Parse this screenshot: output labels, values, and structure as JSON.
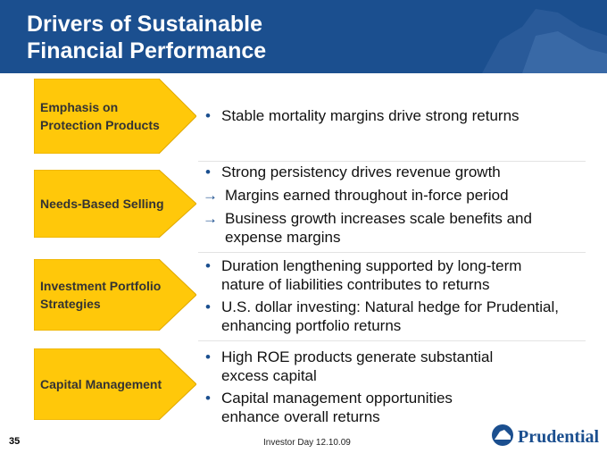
{
  "header": {
    "title": "Drivers of Sustainable Financial Performance"
  },
  "rows": [
    {
      "label": "Emphasis on Protection Products",
      "bullets": [
        {
          "text": "Stable mortality margins drive strong returns",
          "subpoints": []
        }
      ]
    },
    {
      "label": "Needs-Based Selling",
      "bullets": [
        {
          "text": "Strong persistency drives revenue growth",
          "subpoints": [
            "Margins earned throughout in-force period",
            "Business growth increases scale benefits and expense margins"
          ]
        }
      ]
    },
    {
      "label": "Investment Portfolio Strategies",
      "bullets": [
        {
          "text": "Duration lengthening supported by long-term nature of liabilities contributes to returns",
          "subpoints": []
        },
        {
          "text": "U.S. dollar investing: Natural hedge for Prudential, enhancing portfolio returns",
          "subpoints": []
        }
      ]
    },
    {
      "label": "Capital Management",
      "bullets": [
        {
          "text": "High ROE products generate substantial excess capital",
          "subpoints": []
        },
        {
          "text": "Capital management opportunities enhance overall returns",
          "subpoints": []
        }
      ]
    }
  ],
  "footer": {
    "page_number": "35",
    "event": "Investor Day 12.10.09",
    "logo": "Prudential"
  }
}
